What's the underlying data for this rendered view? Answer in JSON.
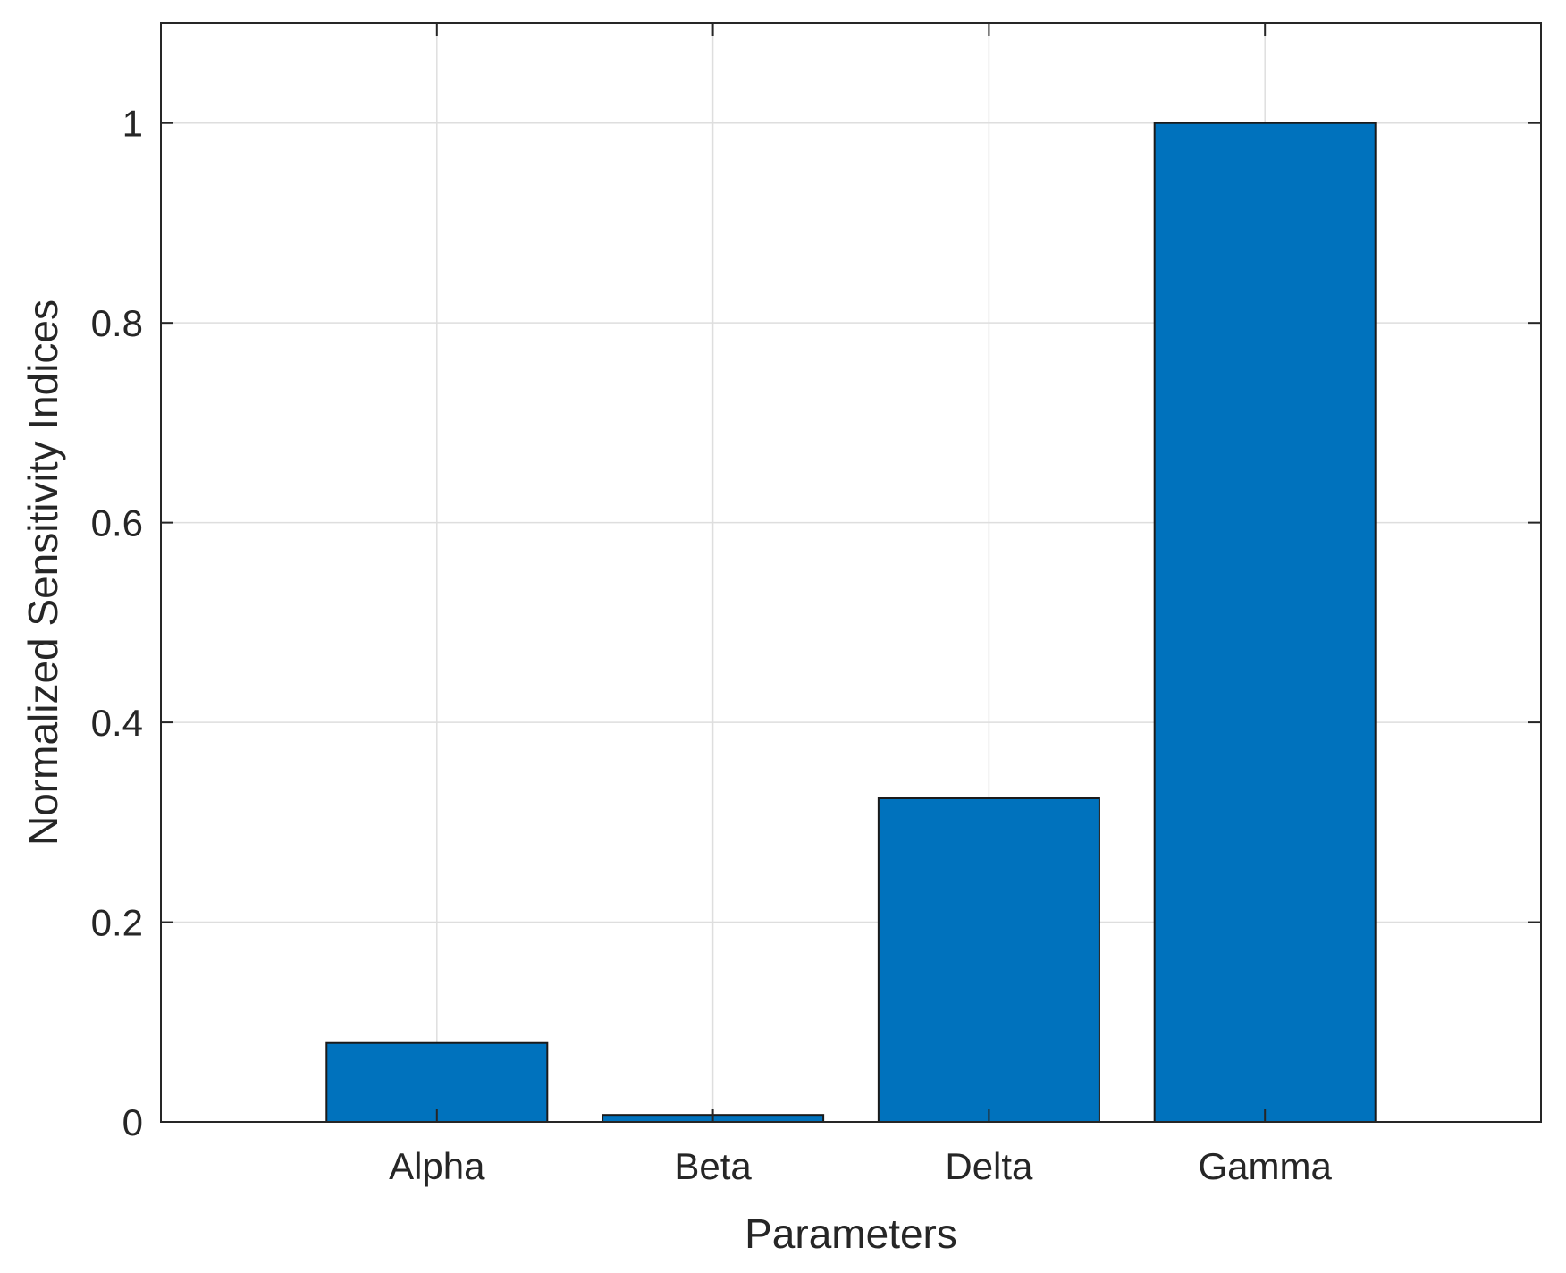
{
  "chart_data": {
    "type": "bar",
    "categories": [
      "Alpha",
      "Beta",
      "Delta",
      "Gamma"
    ],
    "values": [
      0.079,
      0.007,
      0.324,
      1.0
    ],
    "xlabel": "Parameters",
    "ylabel": "Normalized Sensitivity Indices",
    "ylim": [
      0,
      1.1
    ],
    "xlim": [
      0,
      5
    ],
    "yticks": [
      0,
      0.2,
      0.4,
      0.6,
      0.8,
      1
    ],
    "ytick_labels": [
      "0",
      "0.2",
      "0.4",
      "0.6",
      "0.8",
      "1"
    ],
    "grid": true,
    "bar_color": "#0072BD",
    "edge_color": "#1a1a1a"
  }
}
